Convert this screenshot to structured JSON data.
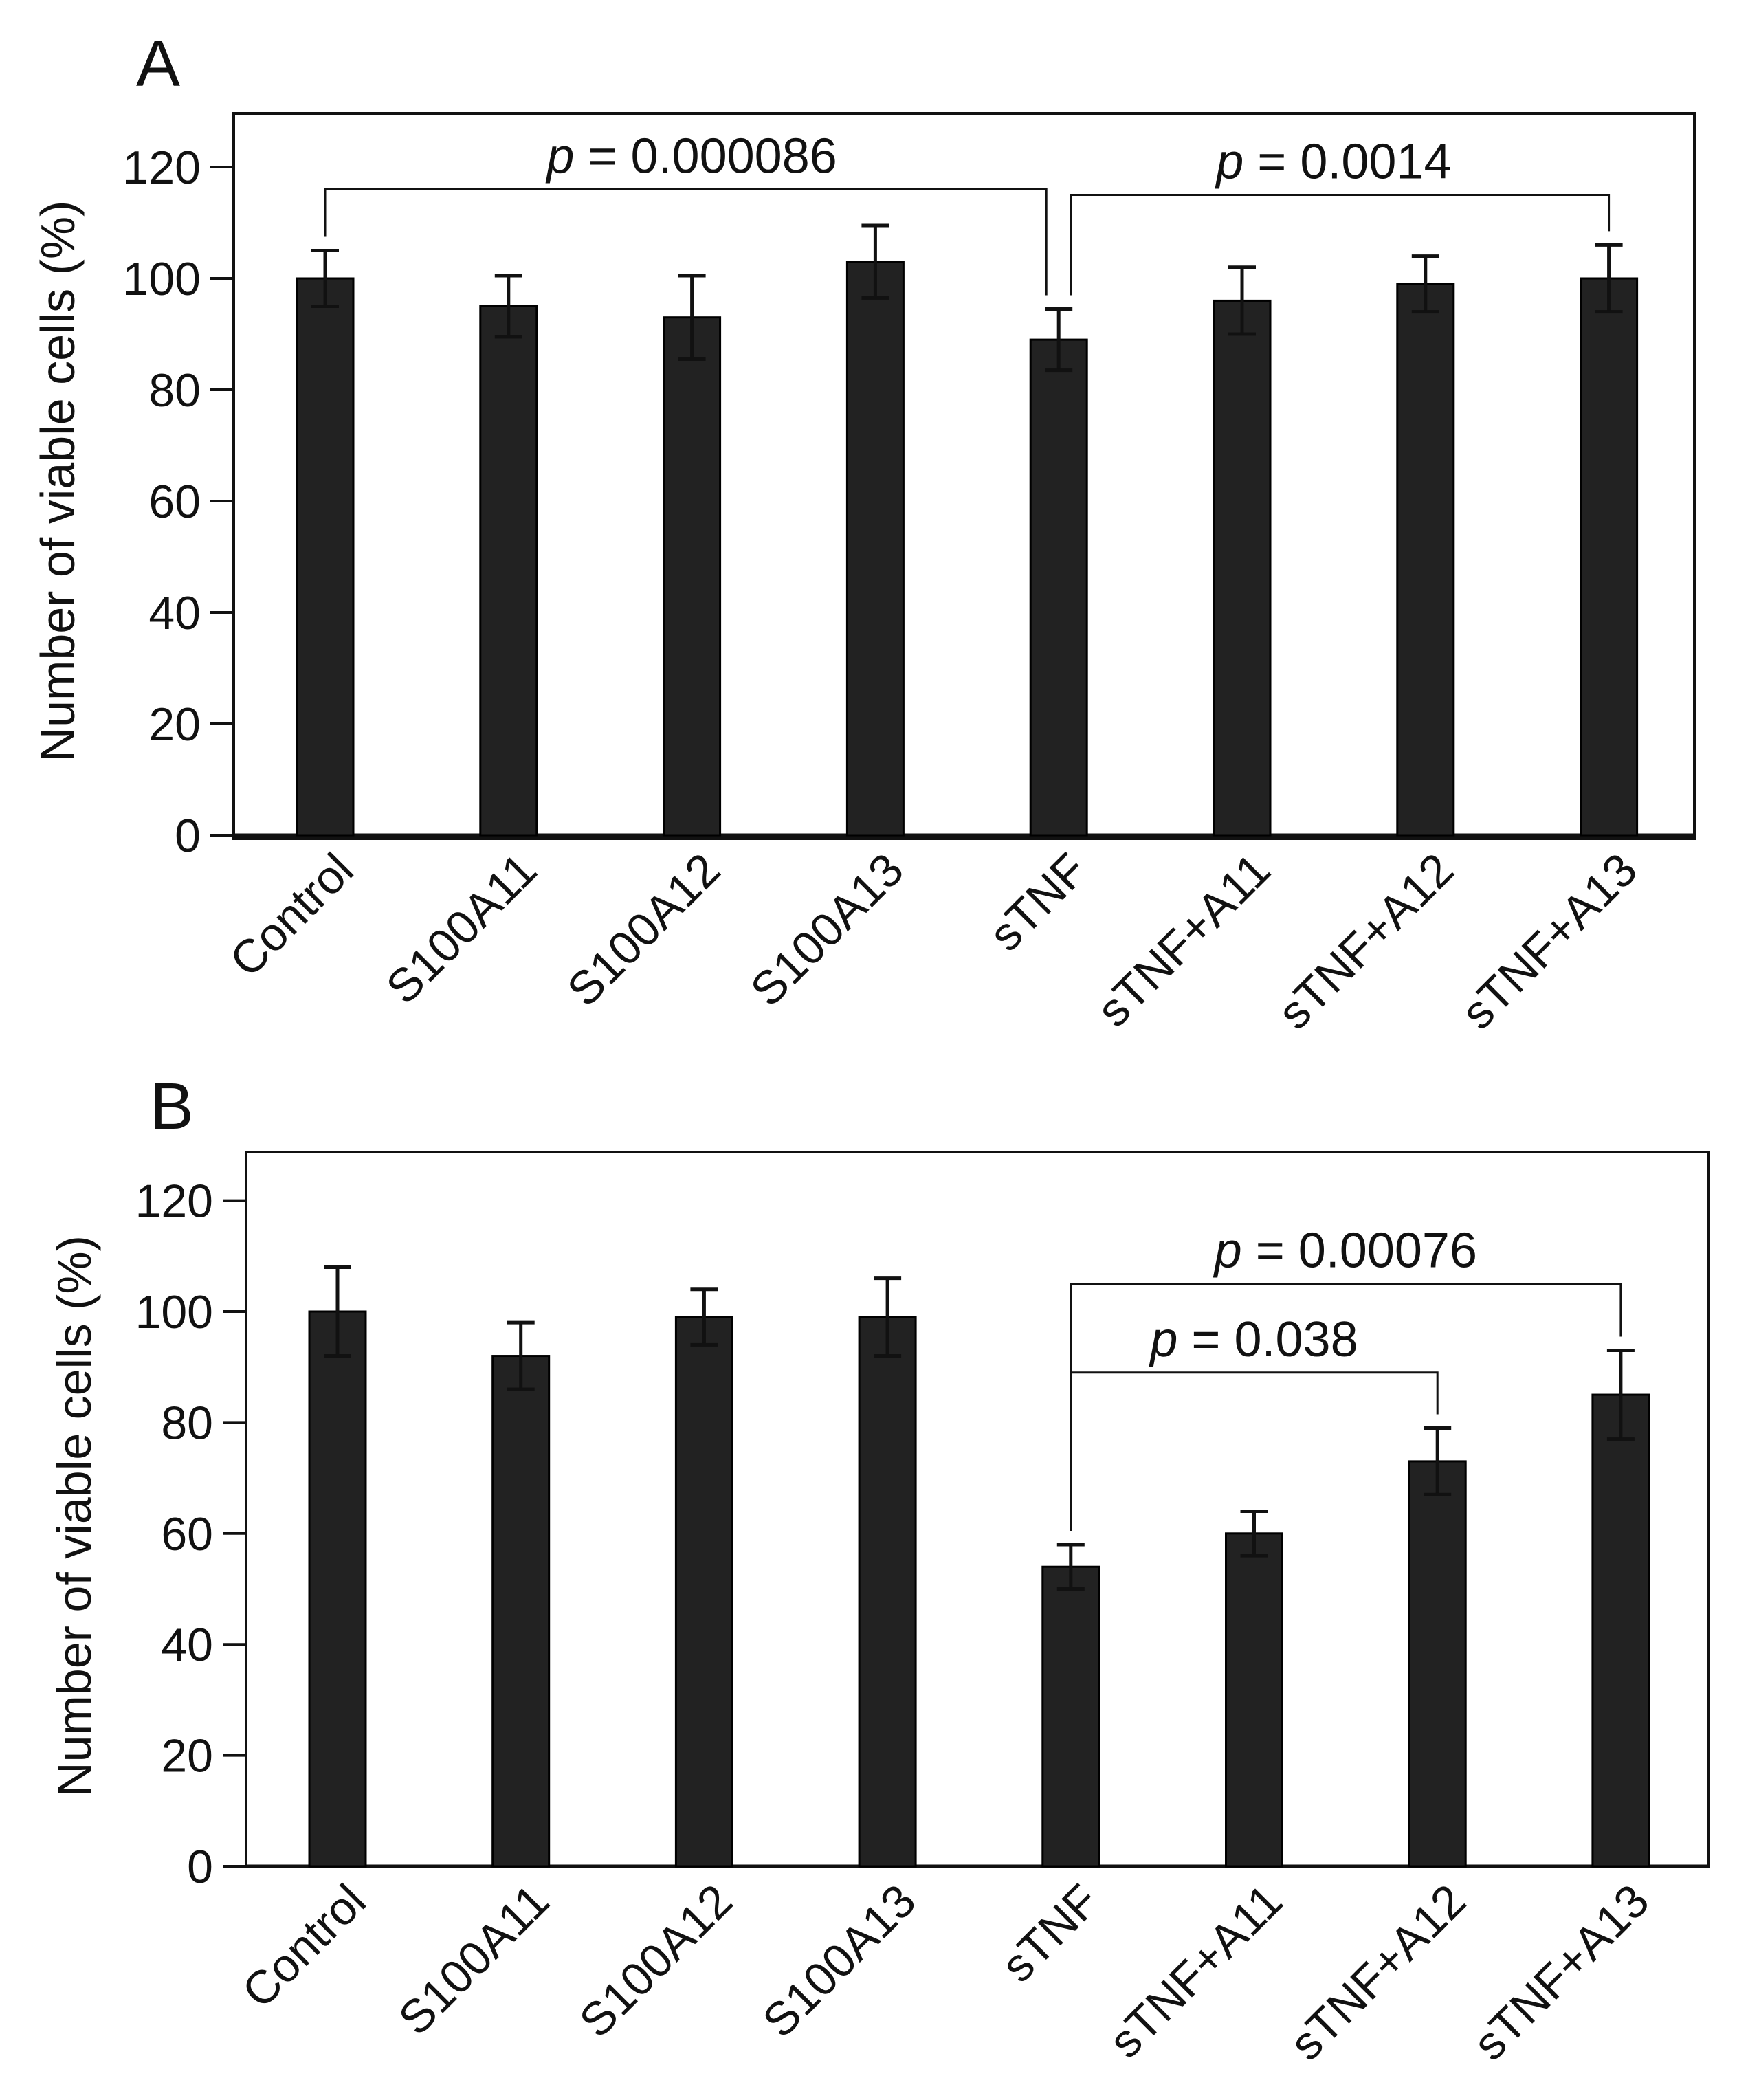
{
  "figure": {
    "bar_color": "#222222",
    "line_color": "#111111"
  },
  "chart_data": [
    {
      "panel": "A",
      "type": "bar",
      "ylabel": "Number of viable cells (%)",
      "ylim": [
        0,
        130
      ],
      "yticks": [
        0,
        20,
        40,
        60,
        80,
        100,
        120
      ],
      "categories": [
        "Control",
        "S100A11",
        "S100A12",
        "S100A13",
        "sTNF",
        "sTNF+A11",
        "sTNF+A12",
        "sTNF+A13"
      ],
      "values": [
        100,
        95,
        93,
        103,
        89,
        96,
        99,
        100
      ],
      "errors": [
        5,
        5.5,
        7.5,
        6.5,
        5.5,
        6,
        5,
        6
      ],
      "significance": [
        {
          "from": 0,
          "to": 4,
          "p_symbol": "p",
          "text": " = 0.000086",
          "level": 116
        },
        {
          "from": 4,
          "to": 7,
          "p_symbol": "p",
          "text": " = 0.0014",
          "level": 115
        }
      ]
    },
    {
      "panel": "B",
      "type": "bar",
      "ylabel": "Number of viable cells (%)",
      "ylim": [
        0,
        130
      ],
      "yticks": [
        0,
        20,
        40,
        60,
        80,
        100,
        120
      ],
      "categories": [
        "Control",
        "S100A11",
        "S100A12",
        "S100A13",
        "sTNF",
        "sTNF+A11",
        "sTNF+A12",
        "sTNF+A13"
      ],
      "values": [
        100,
        92,
        99,
        99,
        54,
        60,
        73,
        85
      ],
      "errors": [
        8,
        6,
        5,
        7,
        4,
        4,
        6,
        8
      ],
      "significance": [
        {
          "from": 4,
          "to": 7,
          "p_symbol": "p",
          "text": " = 0.00076",
          "level": 105
        },
        {
          "from": 4,
          "to": 6,
          "p_symbol": "p",
          "text": " = 0.038",
          "level": 89
        }
      ]
    }
  ]
}
